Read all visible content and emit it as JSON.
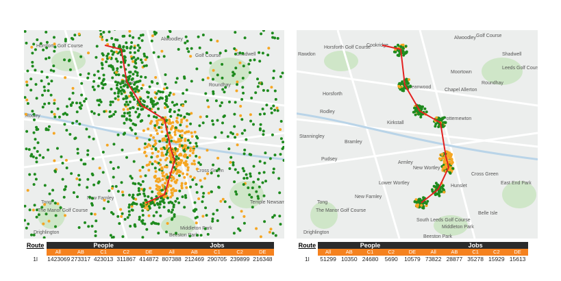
{
  "panels": [
    {
      "map": {
        "labels": [
          "Alwoodley",
          "Golf Course",
          "Horsforth Golf Course",
          "Shadwell",
          "eetwood",
          "Roundhay",
          "Rodley",
          "Cross Green",
          "New Farnley",
          "Tong",
          "The Manor Golf Course",
          "Drighlington",
          "Beeston Park",
          "Middleton Park",
          "Temple Newsam Park"
        ]
      },
      "table": {
        "headers": [
          "Route",
          "People",
          "Jobs"
        ],
        "subheaders": [
          "All",
          "AB",
          "C1",
          "C2",
          "DE",
          "All",
          "AB",
          "C1",
          "C2",
          "DE"
        ],
        "rows": [
          [
            "1l",
            1423069,
            273317,
            423013,
            311867,
            414872,
            807388,
            212469,
            290705,
            239899,
            216348
          ]
        ]
      }
    },
    {
      "map": {
        "labels": [
          "Alwoodley",
          "Golf Course",
          "Horsforth Golf Course",
          "Rawdon",
          "Cookridge",
          "Shadwell",
          "Moortown",
          "Leeds Golf Course",
          "Horsforth",
          "Meanwood",
          "Chapel Allerton",
          "Roundhay",
          "Rodley",
          "Kirkstall",
          "Potternewton",
          "Stanningley",
          "Bramley",
          "Pudsey",
          "Armley",
          "New Wortley",
          "East End Park",
          "Cross Green",
          "Lower Wortley",
          "Hunslet",
          "New Farnley",
          "Tong",
          "The Manor Golf Course",
          "Drighlington",
          "South Leeds Golf Course",
          "Middleton Park",
          "Belle Isle",
          "Beeston Park"
        ]
      },
      "table": {
        "headers": [
          "Route",
          "People",
          "Jobs"
        ],
        "subheaders": [
          "All",
          "AB",
          "C1",
          "C2",
          "DE",
          "All",
          "AB",
          "C1",
          "C2",
          "DE"
        ],
        "rows": [
          [
            "1l",
            51299,
            10350,
            24680,
            5690,
            10579,
            73822,
            28877,
            35278,
            15929,
            15613
          ]
        ]
      }
    }
  ]
}
